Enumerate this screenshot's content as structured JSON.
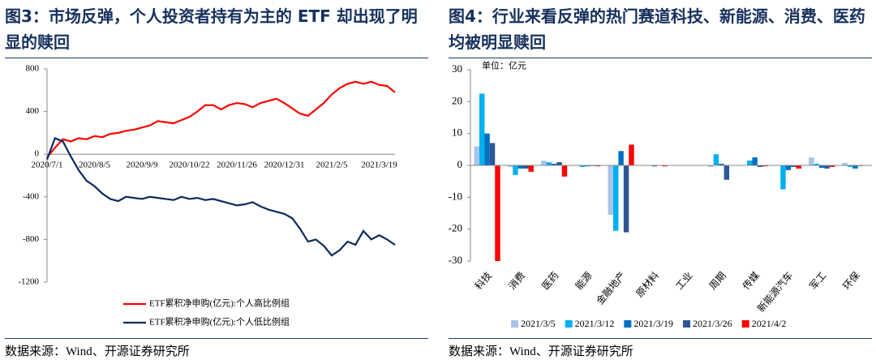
{
  "left": {
    "figure_title": "图3：市场反弹，个人投资者持有为主的 ETF 却出现了明显的赎回",
    "source": "数据来源：Wind、开源证券研究所"
  },
  "right": {
    "figure_title": "图4：行业来看反弹的热门赛道科技、新能源、消费、医药均被明显赎回",
    "source": "数据来源：Wind、开源证券研究所"
  },
  "chart_data": [
    {
      "type": "line",
      "categories": [
        "2020/7/1",
        null,
        null,
        null,
        null,
        null,
        "2020/8/5",
        null,
        null,
        null,
        null,
        null,
        "2020/9/9",
        null,
        null,
        null,
        null,
        null,
        "2020/10/22",
        null,
        null,
        null,
        null,
        null,
        "2020/11/26",
        null,
        null,
        null,
        null,
        null,
        "2020/12/31",
        null,
        null,
        null,
        null,
        null,
        "2021/2/5",
        null,
        null,
        null,
        null,
        null,
        "2021/3/19",
        null,
        null
      ],
      "series": [
        {
          "name": "ETF累积净申购(亿元):个人高比例组",
          "color": "#ff0000",
          "values": [
            -30,
            60,
            140,
            120,
            150,
            140,
            170,
            160,
            190,
            200,
            220,
            230,
            250,
            270,
            310,
            300,
            290,
            320,
            350,
            400,
            460,
            460,
            420,
            460,
            480,
            470,
            440,
            480,
            500,
            520,
            480,
            430,
            380,
            360,
            420,
            480,
            560,
            620,
            660,
            680,
            660,
            680,
            650,
            640,
            580
          ]
        },
        {
          "name": "ETF累积净申购(亿元):个人低比例组",
          "color": "#0d2a5e",
          "values": [
            -50,
            150,
            120,
            -20,
            -150,
            -250,
            -300,
            -370,
            -420,
            -440,
            -400,
            -410,
            -420,
            -400,
            -410,
            -420,
            -430,
            -400,
            -420,
            -410,
            -430,
            -420,
            -440,
            -460,
            -480,
            -470,
            -450,
            -490,
            -520,
            -540,
            -560,
            -600,
            -700,
            -820,
            -800,
            -860,
            -950,
            -900,
            -820,
            -850,
            -720,
            -800,
            -760,
            -800,
            -850
          ]
        }
      ],
      "ylim": [
        -1200,
        800
      ],
      "yticks": [
        800,
        400,
        0,
        -400,
        -800,
        -1200
      ],
      "grid": false,
      "legend": "bottom"
    },
    {
      "type": "bar",
      "annotation": "单位：亿元",
      "categories": [
        "科技",
        "消费",
        "医药",
        "能源",
        "金融地产",
        "原材料",
        "工业",
        "周期",
        "传媒",
        "新能源汽车",
        "军工",
        "环保"
      ],
      "series": [
        {
          "name": "2021/3/5",
          "color": "#a9c4eb",
          "values": [
            6,
            -0.5,
            1.5,
            0,
            -15.5,
            0,
            0,
            -0.5,
            0,
            0,
            2.5,
            0.8
          ]
        },
        {
          "name": "2021/3/12",
          "color": "#00b0f0",
          "values": [
            22.5,
            -3,
            1,
            -0.5,
            -20.5,
            0,
            0,
            3.5,
            1.5,
            -7.5,
            0.5,
            -0.5
          ]
        },
        {
          "name": "2021/3/19",
          "color": "#0070c0",
          "values": [
            10,
            -1,
            0.5,
            -0.3,
            4.5,
            -0.3,
            0,
            0.5,
            2.5,
            -1.5,
            -0.8,
            -1
          ]
        },
        {
          "name": "2021/3/26",
          "color": "#2f5597",
          "values": [
            7,
            -1,
            1,
            -0.2,
            -21,
            0,
            0,
            -4.5,
            -0.5,
            -0.5,
            -1,
            -0.2
          ]
        },
        {
          "name": "2021/4/2",
          "color": "#ff0000",
          "values": [
            -30,
            -2,
            -3.5,
            -0.3,
            6.5,
            -0.3,
            0,
            0,
            -0.3,
            -1,
            -0.5,
            0
          ]
        }
      ],
      "ylim": [
        -30,
        30
      ],
      "yticks": [
        30,
        20,
        10,
        0,
        -10,
        -20,
        -30
      ],
      "grid": false,
      "legend": "bottom"
    }
  ]
}
